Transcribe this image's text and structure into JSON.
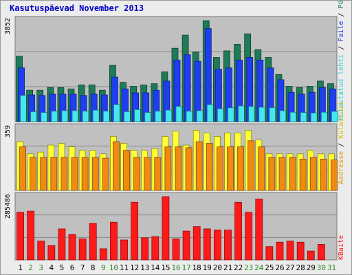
{
  "chart_data": {
    "type": "bar",
    "title": "Kasutuspäevad November 2013",
    "categories": [
      "1",
      "2",
      "3",
      "4",
      "5",
      "6",
      "7",
      "8",
      "9",
      "10",
      "11",
      "12",
      "13",
      "14",
      "15",
      "16",
      "17",
      "18",
      "19",
      "20",
      "21",
      "22",
      "23",
      "24",
      "25",
      "26",
      "27",
      "28",
      "29",
      "30",
      "31"
    ],
    "weekend_days": [
      "2",
      "3",
      "9",
      "10",
      "16",
      "17",
      "23",
      "24",
      "30",
      "31"
    ],
    "panels": [
      {
        "name": "top",
        "max_label": "3852",
        "ylim": [
          0,
          3852
        ],
        "series": [
          {
            "name": "Pöördumisi",
            "color": "#1f7a57",
            "values": [
              2500,
              1200,
              1200,
              1300,
              1300,
              1250,
              1400,
              1400,
              1200,
              2150,
              1500,
              1350,
              1400,
              1450,
              1900,
              2800,
              3300,
              2650,
              3852,
              2450,
              2700,
              2950,
              3350,
              2750,
              2450,
              1800,
              1350,
              1300,
              1350,
              1550,
              1450
            ]
          },
          {
            "name": "Faile",
            "color": "#1e3ef0",
            "values": [
              2050,
              1020,
              1000,
              1050,
              1050,
              1050,
              1000,
              1050,
              1020,
              1700,
              1250,
              1100,
              1100,
              1200,
              1550,
              2350,
              2550,
              2300,
              3550,
              2000,
              2050,
              2350,
              2450,
              2350,
              2050,
              1600,
              1120,
              1050,
              1120,
              1300,
              1250
            ]
          },
          {
            "name": "Külastatud lehti",
            "color": "#46e6ee",
            "values": [
              1000,
              380,
              350,
              400,
              420,
              420,
              400,
              440,
              400,
              650,
              380,
              460,
              350,
              400,
              440,
              580,
              400,
              420,
              650,
              490,
              530,
              600,
              580,
              550,
              530,
              420,
              360,
              350,
              330,
              360,
              390
            ]
          }
        ]
      },
      {
        "name": "middle",
        "max_label": "359",
        "ylim": [
          0,
          359
        ],
        "series": [
          {
            "name": "Külastusi",
            "color": "#ffff33",
            "values": [
              280,
              210,
              220,
              260,
              270,
              250,
              230,
              230,
              210,
              310,
              270,
              230,
              230,
              240,
              310,
              340,
              260,
              345,
              330,
              310,
              330,
              330,
              345,
              290,
              210,
              210,
              210,
              210,
              230,
              210,
              210
            ]
          },
          {
            "name": "Aadresse",
            "color": "#f08a10",
            "values": [
              250,
              190,
              190,
              190,
              190,
              190,
              190,
              190,
              185,
              280,
              230,
              190,
              190,
              190,
              250,
              250,
              245,
              280,
              270,
              250,
              250,
              250,
              285,
              250,
              190,
              190,
              190,
              180,
              190,
              180,
              175
            ]
          }
        ]
      },
      {
        "name": "bottom",
        "max_label": "285486",
        "ylim": [
          0,
          285486
        ],
        "series": [
          {
            "name": "KBaite",
            "color": "#ff1a1a",
            "values": [
              215000,
              220000,
              85000,
              65000,
              140000,
              115000,
              95000,
              165000,
              50000,
              170000,
              90000,
              260000,
              100000,
              105000,
              285486,
              95000,
              130000,
              150000,
              140000,
              135000,
              135000,
              260000,
              215000,
              275000,
              60000,
              80000,
              85000,
              80000,
              40000,
              70000,
              0
            ]
          }
        ]
      }
    ]
  }
}
